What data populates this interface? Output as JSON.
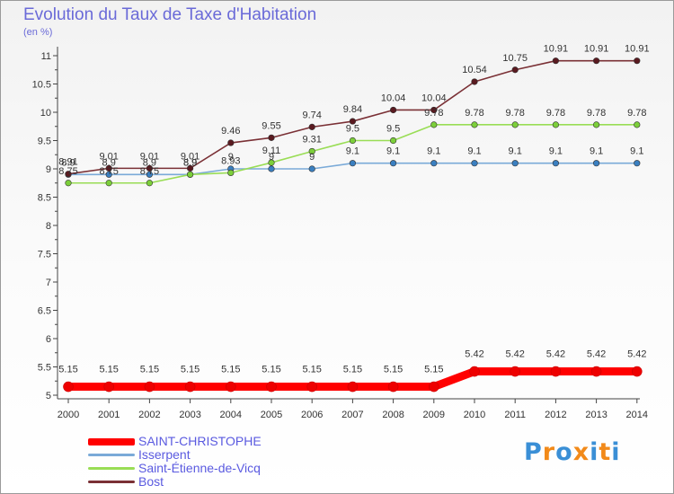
{
  "header": {
    "title": "Evolution du Taux de Taxe d'Habitation",
    "subtitle": "(en %)"
  },
  "logo": {
    "text": "Proxiti",
    "letters": [
      "P",
      "r",
      "o",
      "x",
      "i",
      "t",
      "i"
    ],
    "colors": [
      "#3a8fd6",
      "#f28a1a",
      "#3a8fd6",
      "#f28a1a",
      "#3a8fd6",
      "#f28a1a",
      "#3a8fd6"
    ]
  },
  "chart_data": {
    "type": "line",
    "title": "Evolution du Taux de Taxe d'Habitation",
    "ylabel": "(en %)",
    "xlabel": "",
    "ylim": [
      5,
      11
    ],
    "yticks": [
      "5",
      "5.5",
      "6",
      "6.5",
      "7",
      "7.5",
      "8",
      "8.5",
      "9",
      "9.5",
      "10",
      "10.5",
      "11"
    ],
    "x": [
      "2000",
      "2001",
      "2002",
      "2003",
      "2004",
      "2005",
      "2006",
      "2007",
      "2008",
      "2009",
      "2010",
      "2011",
      "2012",
      "2013",
      "2014"
    ],
    "grid": false,
    "legend_position": "bottom-left",
    "series": [
      {
        "name": "SAINT-CHRISTOPHE",
        "color": "#ff0000",
        "values": [
          5.15,
          5.15,
          5.15,
          5.15,
          5.15,
          5.15,
          5.15,
          5.15,
          5.15,
          5.15,
          5.42,
          5.42,
          5.42,
          5.42,
          5.42
        ],
        "labels": [
          "5.15",
          "5.15",
          "5.15",
          "5.15",
          "5.15",
          "5.15",
          "5.15",
          "5.15",
          "5.15",
          "5.15",
          "5.42",
          "5.42",
          "5.42",
          "5.42",
          "5.42"
        ]
      },
      {
        "name": "Isserpent",
        "color": "#7aaad8",
        "values": [
          8.9,
          8.9,
          8.9,
          8.9,
          9.0,
          9.0,
          9.0,
          9.1,
          9.1,
          9.1,
          9.1,
          9.1,
          9.1,
          9.1,
          9.1
        ],
        "labels": [
          "8.9",
          "8.9",
          "8.9",
          "8.9",
          "9",
          "9",
          "9",
          "9.1",
          "9.1",
          "9.1",
          "9.1",
          "9.1",
          "9.1",
          "9.1",
          "9.1"
        ]
      },
      {
        "name": "Saint-Étienne-de-Vicq",
        "color": "#99dd55",
        "values": [
          8.75,
          8.75,
          8.75,
          8.9,
          8.93,
          9.11,
          9.31,
          9.5,
          9.5,
          9.78,
          9.78,
          9.78,
          9.78,
          9.78,
          9.78
        ],
        "labels": [
          "8.75",
          "8.75",
          "8.75",
          "8.9",
          "8.93",
          "9.11",
          "9.31",
          "9.5",
          "9.5",
          "9.78",
          "9.78",
          "9.78",
          "9.78",
          "9.78",
          "9.78"
        ]
      },
      {
        "name": "Bost",
        "color": "#7a3035",
        "values": [
          8.91,
          9.01,
          9.01,
          9.01,
          9.46,
          9.55,
          9.74,
          9.84,
          10.04,
          10.04,
          10.54,
          10.75,
          10.91,
          10.91,
          10.91
        ],
        "labels": [
          "8.91",
          "9.01",
          "9.01",
          "9.01",
          "9.46",
          "9.55",
          "9.74",
          "9.84",
          "10.04",
          "10.04",
          "10.54",
          "10.75",
          "10.91",
          "10.91",
          "10.91"
        ]
      }
    ]
  }
}
